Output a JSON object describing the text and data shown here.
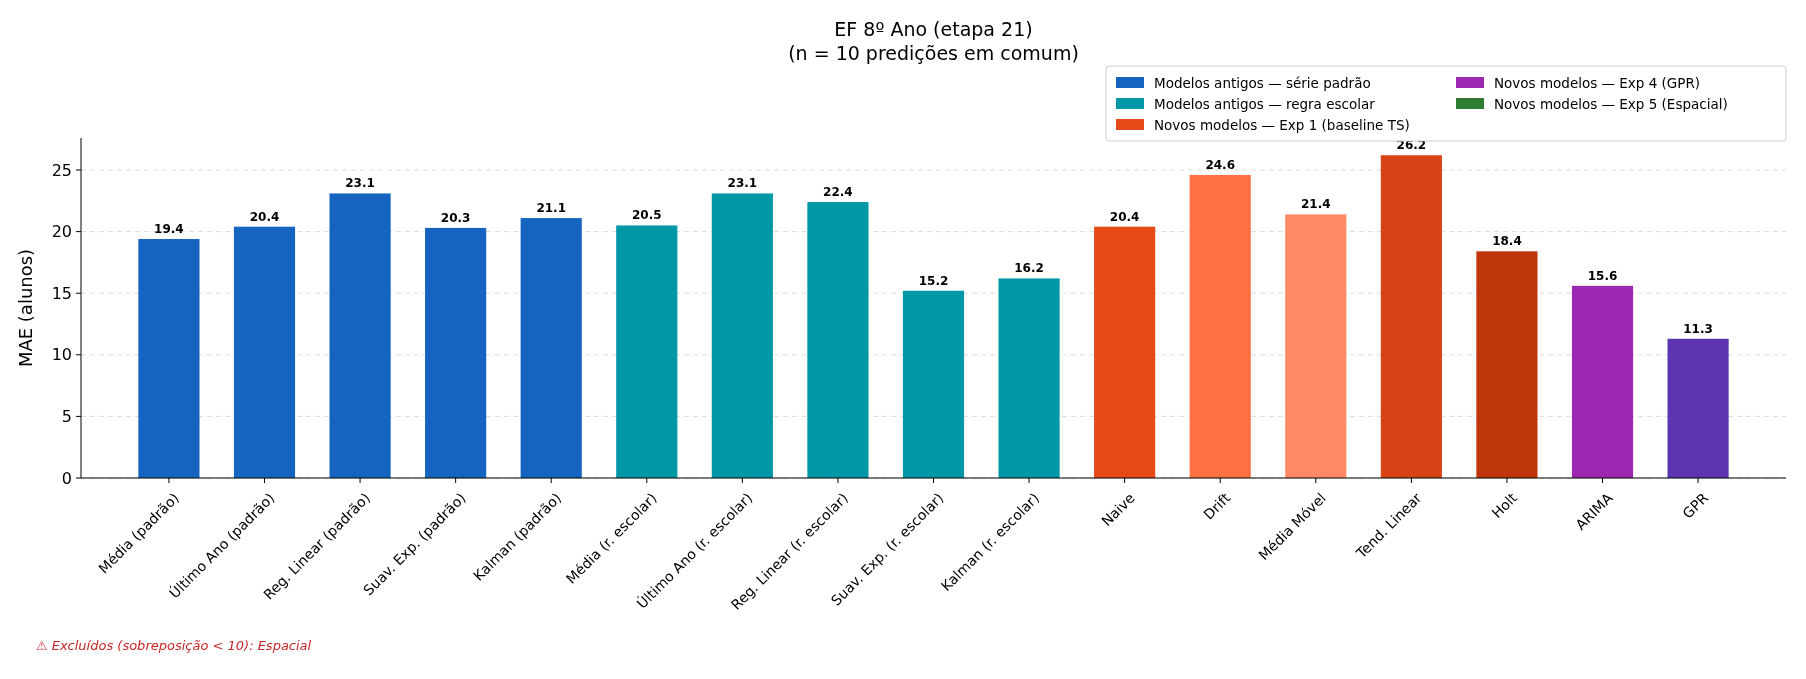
{
  "chart_data": {
    "type": "bar",
    "title": "EF 8º Ano (etapa 21)",
    "subtitle": "(n = 10 predições em comum)",
    "ylabel": "MAE (alunos)",
    "categories": [
      "Média (padrão)",
      "Último Ano (padrão)",
      "Reg. Linear (padrão)",
      "Suav. Exp. (padrão)",
      "Kalman (padrão)",
      "Média (r. escolar)",
      "Último Ano (r. escolar)",
      "Reg. Linear (r. escolar)",
      "Suav. Exp. (r. escolar)",
      "Kalman (r. escolar)",
      "Naive",
      "Drift",
      "Média Móvel",
      "Tend. Linear",
      "Holt",
      "ARIMA",
      "GPR"
    ],
    "series": [
      {
        "name": "Modelos antigos — série padrão",
        "color": "#1565c0",
        "values": [
          19.4,
          20.4,
          23.1,
          20.3,
          21.1,
          null,
          null,
          null,
          null,
          null,
          null,
          null,
          null,
          null,
          null,
          null,
          null
        ]
      },
      {
        "name": "Modelos antigos — regra escolar",
        "color": "#0097a7",
        "values": [
          null,
          null,
          null,
          null,
          null,
          20.5,
          23.1,
          22.4,
          15.2,
          16.2,
          null,
          null,
          null,
          null,
          null,
          null,
          null
        ]
      },
      {
        "name": "Novos modelos — Exp 1 (baseline TS)",
        "color": "#e64a19",
        "colors": [
          null,
          null,
          null,
          null,
          null,
          null,
          null,
          null,
          null,
          null,
          "#e64a19",
          "#ff7043",
          "#ff8a65",
          "#d84315",
          "#bf360c",
          null,
          null
        ],
        "values": [
          null,
          null,
          null,
          null,
          null,
          null,
          null,
          null,
          null,
          null,
          20.4,
          24.6,
          21.4,
          26.2,
          18.4,
          null,
          null
        ]
      },
      {
        "name": "Novos modelos — Exp 4 (GPR)",
        "color": "#9c27b0",
        "colors": [
          null,
          null,
          null,
          null,
          null,
          null,
          null,
          null,
          null,
          null,
          null,
          null,
          null,
          null,
          null,
          "#9c27b0",
          "#5e35b1"
        ],
        "values": [
          null,
          null,
          null,
          null,
          null,
          null,
          null,
          null,
          null,
          null,
          null,
          null,
          null,
          null,
          null,
          15.6,
          11.3
        ]
      },
      {
        "name": "Novos modelos — Exp 5 (Espacial)",
        "color": "#2e7d32",
        "values": [
          null,
          null,
          null,
          null,
          null,
          null,
          null,
          null,
          null,
          null,
          null,
          null,
          null,
          null,
          null,
          null,
          null
        ]
      }
    ],
    "ylim": [
      0,
      27.6
    ],
    "yticks": [
      0,
      5,
      10,
      15,
      20,
      25
    ],
    "grid": "y",
    "data_labels": true,
    "legend": "top right",
    "annotations": [
      "⚠ Excluídos (sobreposição < 10): Espacial"
    ]
  }
}
